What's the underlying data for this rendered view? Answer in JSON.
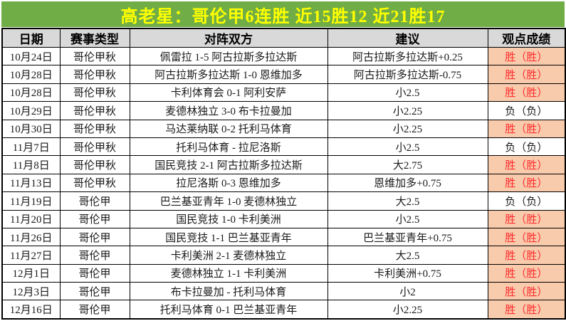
{
  "title": "高老星：哥伦甲6连胜  近15胜12  近21胜17",
  "colors": {
    "title_bg": "#70AD47",
    "title_text": "#FFFF00",
    "header_bg": "#D9D9D9",
    "win_bg": "#F8CBAD",
    "win_text": "#FF2B2B",
    "grid": "#000000"
  },
  "table": {
    "columns": [
      "日期",
      "赛事类型",
      "对阵双方",
      "建议",
      "观点成绩"
    ],
    "rows": [
      {
        "date": "10月24日",
        "league": "哥伦甲秋",
        "match": "佩雷拉 1-5 阿古拉斯多拉达斯",
        "suggestion": "阿古拉斯多拉达斯+0.25",
        "result": "胜（胜）",
        "win": true
      },
      {
        "date": "10月28日",
        "league": "哥伦甲秋",
        "match": "阿古拉斯多拉达斯 1-0 恩维加多",
        "suggestion": "阿古拉斯多拉达斯-0.75",
        "result": "胜（胜）",
        "win": true
      },
      {
        "date": "10月28日",
        "league": "哥伦甲秋",
        "match": "卡利体育会 0-1 阿利安萨",
        "suggestion": "小2.5",
        "result": "胜（胜）",
        "win": true
      },
      {
        "date": "10月29日",
        "league": "哥伦甲秋",
        "match": "麦德林独立 3-0 布卡拉曼加",
        "suggestion": "小2.25",
        "result": "负（负）",
        "win": false
      },
      {
        "date": "10月30日",
        "league": "哥伦甲秋",
        "match": "马达莱纳联 0-2 托利马体育",
        "suggestion": "小2.25",
        "result": "胜（胜）",
        "win": true
      },
      {
        "date": "11月7日",
        "league": "哥伦甲秋",
        "match": "托利马体育 - 拉尼洛斯",
        "suggestion": "小2.5",
        "result": "负（负）",
        "win": false
      },
      {
        "date": "11月8日",
        "league": "哥伦甲秋",
        "match": "国民竞技 2-1 阿古拉斯多拉达斯",
        "suggestion": "大2.75",
        "result": "胜（胜）",
        "win": true
      },
      {
        "date": "11月13日",
        "league": "哥伦甲秋",
        "match": "拉尼洛斯 0-3 恩维加多",
        "suggestion": "恩维加多+0.75",
        "result": "胜（胜）",
        "win": true
      },
      {
        "date": "11月19日",
        "league": "哥伦甲",
        "match": "巴兰基亚青年 1-0 麦德林独立",
        "suggestion": "大2.5",
        "result": "负（负）",
        "win": false
      },
      {
        "date": "11月20日",
        "league": "哥伦甲",
        "match": "国民竞技 1-0 卡利美洲",
        "suggestion": "小2.5",
        "result": "胜（胜）",
        "win": true
      },
      {
        "date": "11月26日",
        "league": "哥伦甲",
        "match": "国民竞技 1-1 巴兰基亚青年",
        "suggestion": "巴兰基亚青年+0.75",
        "result": "胜（胜）",
        "win": true
      },
      {
        "date": "11月27日",
        "league": "哥伦甲",
        "match": "卡利美洲 2-1 麦德林独立",
        "suggestion": "大2.5",
        "result": "胜（胜）",
        "win": true
      },
      {
        "date": "12月1日",
        "league": "哥伦甲",
        "match": "麦德林独立 1-1 卡利美洲",
        "suggestion": "卡利美洲+0.75",
        "result": "胜（胜）",
        "win": true
      },
      {
        "date": "12月3日",
        "league": "哥伦甲",
        "match": "布卡拉曼加 - 托利马体育",
        "suggestion": "小2",
        "result": "胜（胜）",
        "win": true
      },
      {
        "date": "12月16日",
        "league": "哥伦甲",
        "match": "托利马体育 0-1 巴兰基亚青年",
        "suggestion": "小2.25",
        "result": "胜（胜）",
        "win": true
      }
    ]
  }
}
